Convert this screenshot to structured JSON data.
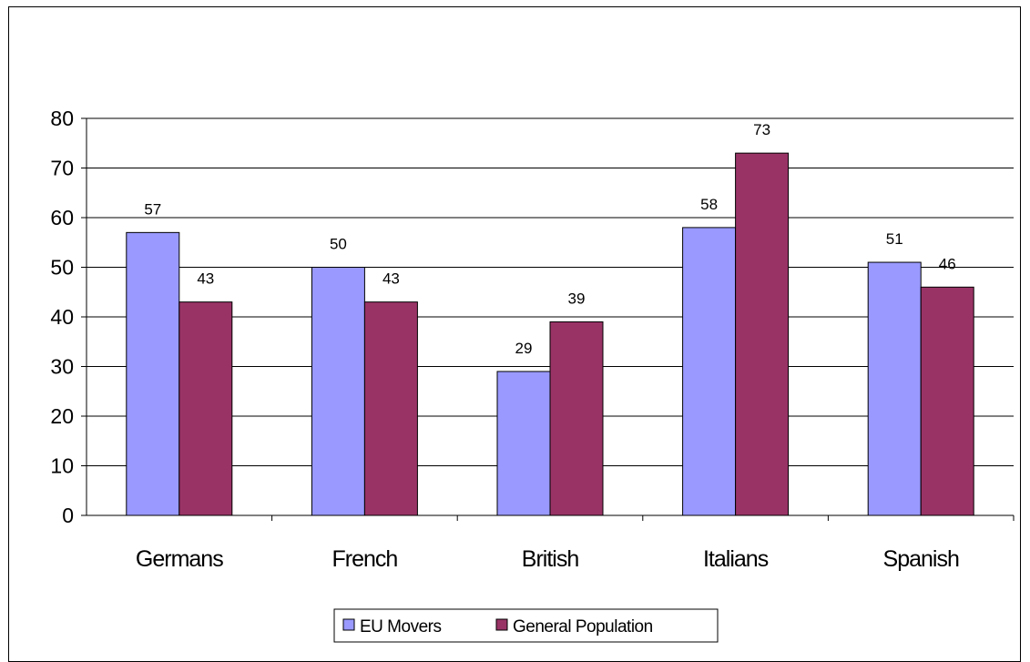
{
  "chart_data": {
    "type": "bar",
    "categories": [
      "Germans",
      "French",
      "British",
      "Italians",
      "Spanish"
    ],
    "series": [
      {
        "name": "EU Movers",
        "values": [
          57,
          50,
          29,
          58,
          51
        ],
        "color": "#9999ff"
      },
      {
        "name": "General Population",
        "values": [
          43,
          43,
          39,
          73,
          46
        ],
        "color": "#993366"
      }
    ],
    "ylim": [
      0,
      80
    ],
    "yticks": [
      0,
      10,
      20,
      30,
      40,
      50,
      60,
      70,
      80
    ],
    "grid": true,
    "legend": "bottom"
  }
}
